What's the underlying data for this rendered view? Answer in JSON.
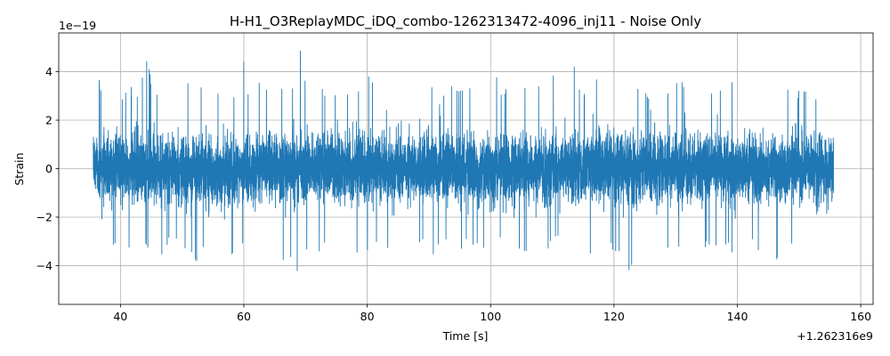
{
  "chart_data": {
    "type": "line",
    "title": "H-H1_O3ReplayMDC_iDQ_combo-1262313472-4096_inj11 - Noise Only",
    "xlabel": "Time [s]",
    "ylabel": "Strain",
    "x_offset_label": "+1.262316e9",
    "y_scale_label": "1e−19",
    "xlim": [
      30,
      162
    ],
    "ylim": [
      -5.6,
      5.6
    ],
    "xticks": [
      40,
      60,
      80,
      100,
      120,
      140,
      160
    ],
    "xtick_labels": [
      "40",
      "60",
      "80",
      "100",
      "120",
      "140",
      "160"
    ],
    "yticks": [
      -4,
      -2,
      0,
      2,
      4
    ],
    "ytick_labels": [
      "−4",
      "−2",
      "0",
      "2",
      "4"
    ],
    "grid": true,
    "series": [
      {
        "color": "#1f77b4",
        "x_start": 35.6,
        "x_end": 155.6,
        "envelope_max": [
          [
            36.0,
            2.6
          ],
          [
            36.5,
            3.9
          ],
          [
            37.0,
            3.0
          ],
          [
            37.8,
            4.0
          ],
          [
            38.5,
            3.2
          ],
          [
            40.0,
            2.8
          ],
          [
            41.5,
            3.6
          ],
          [
            43.0,
            3.2
          ],
          [
            44.3,
            4.6
          ],
          [
            45.5,
            3.0
          ],
          [
            47.0,
            3.3
          ],
          [
            49.0,
            3.0
          ],
          [
            50.5,
            3.7
          ],
          [
            52.0,
            3.1
          ],
          [
            53.5,
            3.5
          ],
          [
            55.0,
            3.0
          ],
          [
            56.5,
            3.4
          ],
          [
            58.0,
            2.9
          ],
          [
            60.0,
            4.7
          ],
          [
            61.0,
            3.1
          ],
          [
            62.5,
            3.9
          ],
          [
            64.0,
            3.2
          ],
          [
            65.5,
            3.6
          ],
          [
            67.0,
            3.3
          ],
          [
            68.0,
            3.9
          ],
          [
            69.3,
            5.1
          ],
          [
            70.5,
            3.4
          ],
          [
            72.0,
            3.0
          ],
          [
            73.5,
            3.7
          ],
          [
            75.0,
            3.1
          ],
          [
            76.5,
            3.5
          ],
          [
            78.0,
            3.2
          ],
          [
            80.0,
            3.9
          ],
          [
            82.0,
            3.3
          ],
          [
            84.0,
            3.6
          ],
          [
            85.5,
            3.0
          ],
          [
            87.0,
            3.8
          ],
          [
            88.5,
            3.1
          ],
          [
            90.0,
            3.5
          ],
          [
            92.0,
            3.0
          ],
          [
            94.0,
            3.8
          ],
          [
            95.5,
            3.2
          ],
          [
            97.0,
            3.5
          ],
          [
            99.0,
            3.1
          ],
          [
            101.0,
            3.8
          ],
          [
            102.5,
            3.3
          ],
          [
            104.5,
            3.9
          ],
          [
            106.0,
            3.2
          ],
          [
            108.0,
            4.0
          ],
          [
            109.0,
            3.4
          ],
          [
            110.5,
            4.2
          ],
          [
            112.0,
            3.6
          ],
          [
            113.5,
            4.3
          ],
          [
            115.0,
            3.4
          ],
          [
            117.0,
            3.9
          ],
          [
            118.5,
            3.1
          ],
          [
            120.0,
            4.0
          ],
          [
            122.0,
            3.5
          ],
          [
            124.0,
            3.8
          ],
          [
            125.5,
            3.1
          ],
          [
            127.0,
            3.9
          ],
          [
            128.5,
            3.3
          ],
          [
            130.0,
            3.5
          ],
          [
            131.5,
            3.7
          ],
          [
            133.0,
            3.1
          ],
          [
            135.0,
            3.8
          ],
          [
            136.5,
            3.2
          ],
          [
            138.5,
            4.4
          ],
          [
            140.0,
            3.2
          ],
          [
            142.0,
            3.7
          ],
          [
            143.5,
            3.1
          ],
          [
            145.0,
            3.5
          ],
          [
            147.0,
            3.9
          ],
          [
            149.0,
            3.1
          ],
          [
            150.5,
            3.5
          ],
          [
            152.0,
            3.0
          ],
          [
            154.0,
            3.6
          ],
          [
            155.6,
            2.6
          ]
        ],
        "envelope_min": [
          [
            36.0,
            -2.6
          ],
          [
            36.5,
            -3.6
          ],
          [
            37.0,
            -4.1
          ],
          [
            38.0,
            -4.1
          ],
          [
            39.5,
            -3.2
          ],
          [
            41.0,
            -3.4
          ],
          [
            42.5,
            -3.0
          ],
          [
            43.5,
            -3.7
          ],
          [
            45.0,
            -3.4
          ],
          [
            46.5,
            -4.2
          ],
          [
            48.0,
            -3.0
          ],
          [
            49.5,
            -3.4
          ],
          [
            51.0,
            -3.5
          ],
          [
            52.5,
            -3.9
          ],
          [
            54.0,
            -3.1
          ],
          [
            55.5,
            -3.5
          ],
          [
            57.0,
            -3.0
          ],
          [
            58.5,
            -3.8
          ],
          [
            60.5,
            -3.3
          ],
          [
            62.0,
            -3.6
          ],
          [
            63.5,
            -3.0
          ],
          [
            65.0,
            -3.4
          ],
          [
            66.5,
            -4.0
          ],
          [
            67.0,
            -4.8
          ],
          [
            68.0,
            -3.5
          ],
          [
            69.3,
            -5.0
          ],
          [
            70.5,
            -3.2
          ],
          [
            72.0,
            -3.7
          ],
          [
            73.5,
            -3.0
          ],
          [
            75.0,
            -3.6
          ],
          [
            77.0,
            -3.2
          ],
          [
            79.0,
            -3.8
          ],
          [
            81.0,
            -3.3
          ],
          [
            83.0,
            -3.6
          ],
          [
            85.0,
            -3.0
          ],
          [
            87.0,
            -3.4
          ],
          [
            89.0,
            -3.1
          ],
          [
            91.0,
            -3.6
          ],
          [
            93.0,
            -3.2
          ],
          [
            95.0,
            -3.5
          ],
          [
            97.0,
            -3.2
          ],
          [
            98.5,
            -3.9
          ],
          [
            100.0,
            -3.5
          ],
          [
            102.0,
            -3.2
          ],
          [
            104.0,
            -3.6
          ],
          [
            106.0,
            -3.9
          ],
          [
            107.5,
            -3.3
          ],
          [
            109.0,
            -3.7
          ],
          [
            111.0,
            -3.1
          ],
          [
            113.0,
            -3.5
          ],
          [
            115.0,
            -3.2
          ],
          [
            117.0,
            -3.8
          ],
          [
            119.0,
            -3.3
          ],
          [
            121.0,
            -4.0
          ],
          [
            122.5,
            -4.3
          ],
          [
            124.0,
            -3.9
          ],
          [
            125.5,
            -4.2
          ],
          [
            127.0,
            -4.8
          ],
          [
            128.5,
            -3.5
          ],
          [
            130.0,
            -3.9
          ],
          [
            132.0,
            -3.2
          ],
          [
            134.0,
            -3.6
          ],
          [
            135.5,
            -3.1
          ],
          [
            137.0,
            -3.8
          ],
          [
            138.5,
            -3.5
          ],
          [
            140.0,
            -3.9
          ],
          [
            142.0,
            -3.2
          ],
          [
            144.0,
            -3.6
          ],
          [
            145.5,
            -5.0
          ],
          [
            147.0,
            -3.5
          ],
          [
            149.0,
            -3.1
          ],
          [
            151.0,
            -3.7
          ],
          [
            153.0,
            -3.2
          ],
          [
            154.5,
            -3.9
          ],
          [
            155.6,
            -2.9
          ]
        ]
      }
    ]
  }
}
